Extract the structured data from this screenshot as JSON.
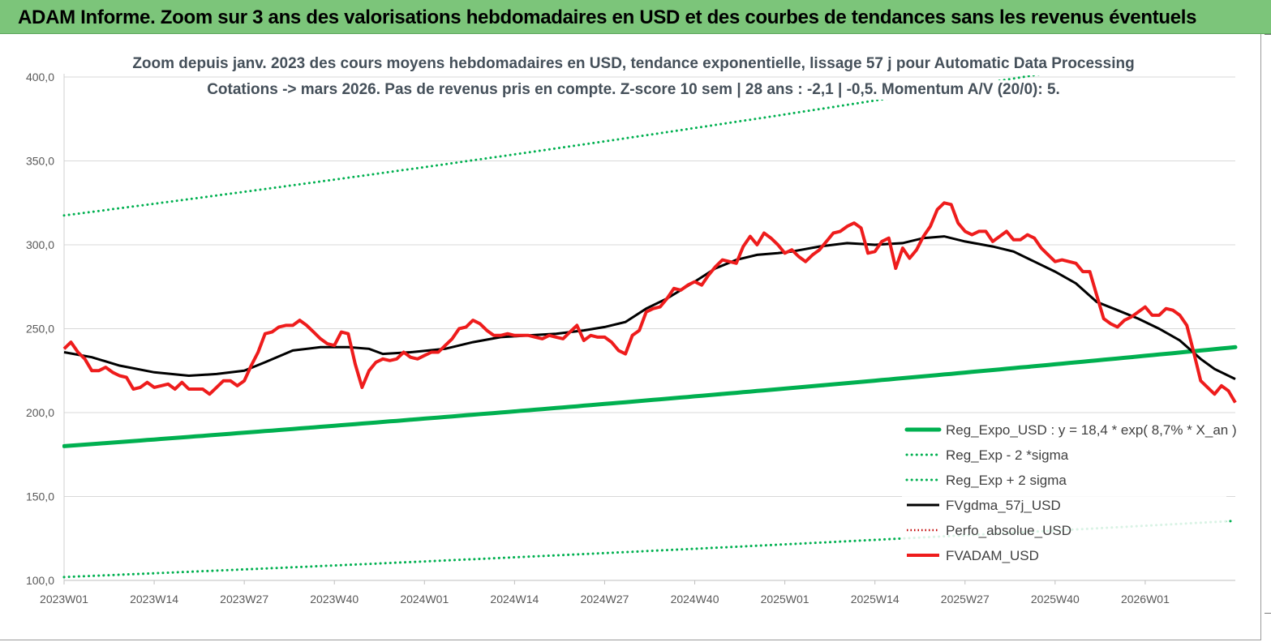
{
  "header": {
    "title": "ADAM Informe. Zoom sur 3 ans des valorisations hebdomadaires en USD et des courbes de tendances sans les revenus éventuels"
  },
  "chart_data": {
    "type": "line",
    "title_line1": "Zoom depuis janv. 2023 des cours moyens hebdomadaires en USD, tendance exponentielle, lissage 57 j pour Automatic Data Processing",
    "title_line2": "Cotations -> mars 2026. Pas de revenus pris en compte. Z-score 10 sem | 28 ans : -2,1 | -0,5. Momentum A/V (20/0): 5.",
    "ylim": [
      100,
      400
    ],
    "y_ticks": [
      "100,0",
      "150,0",
      "200,0",
      "250,0",
      "300,0",
      "350,0",
      "400,0"
    ],
    "y_tick_values": [
      100,
      150,
      200,
      250,
      300,
      350,
      400
    ],
    "x_ticks": [
      "2023W01",
      "2023W14",
      "2023W27",
      "2023W40",
      "2024W01",
      "2024W14",
      "2024W27",
      "2024W40",
      "2025W01",
      "2025W14",
      "2025W27",
      "2025W40",
      "2026W01"
    ],
    "x_tick_index": [
      0,
      13,
      26,
      39,
      52,
      65,
      78,
      91,
      104,
      117,
      130,
      143,
      156
    ],
    "x_max_index": 169,
    "grid": "horizontal",
    "legend_position": "bottom-right",
    "colors": {
      "trend": "#00b050",
      "band": "#00b050",
      "smooth": "#000000",
      "perf": "#c00000",
      "price": "#ee1c1c"
    },
    "series": [
      {
        "name": "Reg_Expo_USD : y = 18,4 * exp( 8,7% *  X_an )",
        "style": "trend",
        "start": 180,
        "end": 239
      },
      {
        "name": "Reg_Exp - 2 *sigma",
        "style": "band",
        "start": 102,
        "end": 135.5
      },
      {
        "name": "Reg_Exp + 2 sigma",
        "style": "band",
        "start": 317.5,
        "end": 421
      },
      {
        "name": "FVgdma_57j_USD",
        "style": "smooth",
        "points": [
          [
            0,
            236
          ],
          [
            4,
            233
          ],
          [
            8,
            228
          ],
          [
            13,
            224
          ],
          [
            18,
            222
          ],
          [
            22,
            223
          ],
          [
            26,
            225
          ],
          [
            29,
            230
          ],
          [
            33,
            237
          ],
          [
            37,
            239
          ],
          [
            41,
            239
          ],
          [
            44,
            238
          ],
          [
            46,
            235
          ],
          [
            50,
            236
          ],
          [
            55,
            238
          ],
          [
            59,
            242
          ],
          [
            63,
            245
          ],
          [
            67,
            246
          ],
          [
            71,
            247
          ],
          [
            75,
            249
          ],
          [
            78,
            251
          ],
          [
            81,
            254
          ],
          [
            84,
            262
          ],
          [
            87,
            268
          ],
          [
            91,
            278
          ],
          [
            94,
            286
          ],
          [
            97,
            291
          ],
          [
            100,
            294
          ],
          [
            103,
            295
          ],
          [
            105,
            296
          ],
          [
            109,
            299
          ],
          [
            113,
            301
          ],
          [
            117,
            300
          ],
          [
            121,
            301
          ],
          [
            124,
            304
          ],
          [
            127,
            305
          ],
          [
            130,
            302
          ],
          [
            134,
            299
          ],
          [
            137,
            296
          ],
          [
            140,
            290
          ],
          [
            143,
            284
          ],
          [
            146,
            277
          ],
          [
            149,
            266
          ],
          [
            152,
            261
          ],
          [
            155,
            256
          ],
          [
            158,
            250
          ],
          [
            161,
            243
          ],
          [
            164,
            232
          ],
          [
            166,
            226
          ],
          [
            169,
            220
          ]
        ]
      },
      {
        "name": "Perfo_absolue_USD",
        "style": "perf",
        "points": []
      },
      {
        "name": "FVADAM_USD",
        "style": "price",
        "points": [
          [
            0,
            238
          ],
          [
            1,
            242
          ],
          [
            2,
            236
          ],
          [
            3,
            232
          ],
          [
            4,
            225
          ],
          [
            5,
            225
          ],
          [
            6,
            227
          ],
          [
            7,
            224
          ],
          [
            8,
            222
          ],
          [
            9,
            221
          ],
          [
            10,
            214
          ],
          [
            11,
            215
          ],
          [
            12,
            218
          ],
          [
            13,
            215
          ],
          [
            14,
            216
          ],
          [
            15,
            217
          ],
          [
            16,
            214
          ],
          [
            17,
            218
          ],
          [
            18,
            214
          ],
          [
            19,
            214
          ],
          [
            20,
            214
          ],
          [
            21,
            211
          ],
          [
            22,
            215
          ],
          [
            23,
            219
          ],
          [
            24,
            219
          ],
          [
            25,
            216
          ],
          [
            26,
            219
          ],
          [
            27,
            228
          ],
          [
            28,
            236
          ],
          [
            29,
            247
          ],
          [
            30,
            248
          ],
          [
            31,
            251
          ],
          [
            32,
            252
          ],
          [
            33,
            252
          ],
          [
            34,
            255
          ],
          [
            35,
            252
          ],
          [
            36,
            248
          ],
          [
            37,
            244
          ],
          [
            38,
            241
          ],
          [
            39,
            240
          ],
          [
            40,
            248
          ],
          [
            41,
            247
          ],
          [
            42,
            229
          ],
          [
            43,
            215
          ],
          [
            44,
            225
          ],
          [
            45,
            230
          ],
          [
            46,
            232
          ],
          [
            47,
            231
          ],
          [
            48,
            232
          ],
          [
            49,
            236
          ],
          [
            50,
            233
          ],
          [
            51,
            232
          ],
          [
            52,
            234
          ],
          [
            53,
            236
          ],
          [
            54,
            236
          ],
          [
            55,
            240
          ],
          [
            56,
            244
          ],
          [
            57,
            250
          ],
          [
            58,
            251
          ],
          [
            59,
            255
          ],
          [
            60,
            253
          ],
          [
            61,
            249
          ],
          [
            62,
            246
          ],
          [
            63,
            246
          ],
          [
            64,
            247
          ],
          [
            65,
            246
          ],
          [
            66,
            246
          ],
          [
            67,
            246
          ],
          [
            68,
            245
          ],
          [
            69,
            244
          ],
          [
            70,
            246
          ],
          [
            71,
            245
          ],
          [
            72,
            244
          ],
          [
            73,
            248
          ],
          [
            74,
            252
          ],
          [
            75,
            243
          ],
          [
            76,
            246
          ],
          [
            77,
            245
          ],
          [
            78,
            245
          ],
          [
            79,
            242
          ],
          [
            80,
            237
          ],
          [
            81,
            235
          ],
          [
            82,
            246
          ],
          [
            83,
            249
          ],
          [
            84,
            260
          ],
          [
            85,
            262
          ],
          [
            86,
            263
          ],
          [
            87,
            268
          ],
          [
            88,
            274
          ],
          [
            89,
            273
          ],
          [
            90,
            276
          ],
          [
            91,
            278
          ],
          [
            92,
            276
          ],
          [
            93,
            282
          ],
          [
            94,
            287
          ],
          [
            95,
            291
          ],
          [
            96,
            290
          ],
          [
            97,
            289
          ],
          [
            98,
            299
          ],
          [
            99,
            305
          ],
          [
            100,
            300
          ],
          [
            101,
            307
          ],
          [
            102,
            304
          ],
          [
            103,
            300
          ],
          [
            104,
            295
          ],
          [
            105,
            297
          ],
          [
            106,
            293
          ],
          [
            107,
            290
          ],
          [
            108,
            294
          ],
          [
            109,
            297
          ],
          [
            110,
            302
          ],
          [
            111,
            307
          ],
          [
            112,
            308
          ],
          [
            113,
            311
          ],
          [
            114,
            313
          ],
          [
            115,
            310
          ],
          [
            116,
            295
          ],
          [
            117,
            296
          ],
          [
            118,
            302
          ],
          [
            119,
            304
          ],
          [
            120,
            286
          ],
          [
            121,
            298
          ],
          [
            122,
            292
          ],
          [
            123,
            297
          ],
          [
            124,
            305
          ],
          [
            125,
            311
          ],
          [
            126,
            321
          ],
          [
            127,
            325
          ],
          [
            128,
            324
          ],
          [
            129,
            313
          ],
          [
            130,
            308
          ],
          [
            131,
            306
          ],
          [
            132,
            308
          ],
          [
            133,
            308
          ],
          [
            134,
            302
          ],
          [
            135,
            305
          ],
          [
            136,
            308
          ],
          [
            137,
            303
          ],
          [
            138,
            303
          ],
          [
            139,
            306
          ],
          [
            140,
            304
          ],
          [
            141,
            298
          ],
          [
            142,
            294
          ],
          [
            143,
            290
          ],
          [
            144,
            291
          ],
          [
            145,
            290
          ],
          [
            146,
            289
          ],
          [
            147,
            284
          ],
          [
            148,
            284
          ],
          [
            149,
            270
          ],
          [
            150,
            256
          ],
          [
            151,
            253
          ],
          [
            152,
            251
          ],
          [
            153,
            255
          ],
          [
            154,
            257
          ],
          [
            155,
            260
          ],
          [
            156,
            263
          ],
          [
            157,
            258
          ],
          [
            158,
            258
          ],
          [
            159,
            262
          ],
          [
            160,
            261
          ],
          [
            161,
            258
          ],
          [
            162,
            252
          ],
          [
            163,
            236
          ],
          [
            164,
            219
          ],
          [
            165,
            215
          ],
          [
            166,
            211
          ],
          [
            167,
            216
          ],
          [
            168,
            213
          ],
          [
            169,
            206
          ]
        ]
      }
    ]
  }
}
